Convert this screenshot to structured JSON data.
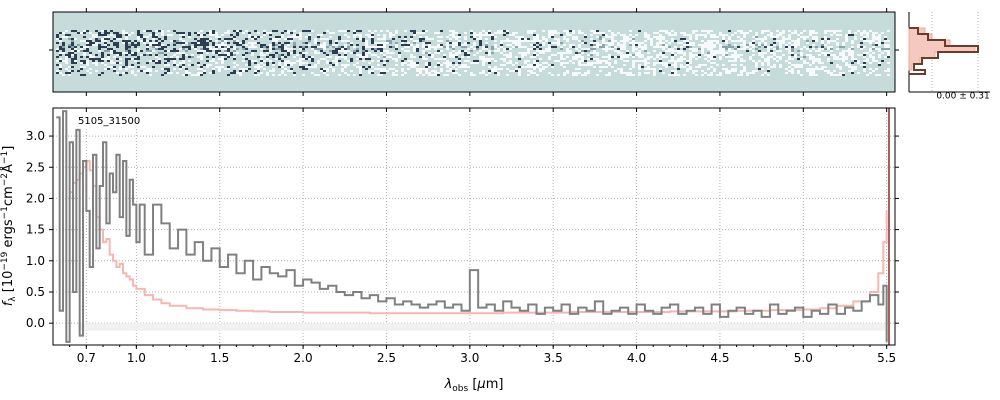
{
  "chart_data": [
    {
      "panel": "2d-spectrum",
      "type": "heatmap",
      "description_visible": "2D spectrum image, dark/white streaks along central trace",
      "colors": {
        "background": "#c5dcdb",
        "trace_dark": "#1c2c44",
        "trace_light": "#ffffff"
      }
    },
    {
      "panel": "cross-dispersion-profile",
      "type": "line",
      "annotation": "0.00 ± 0.31",
      "colors": {
        "profile": "#6b3b2c",
        "fill": "#f6c9c0",
        "fill_edge": "#e9a999"
      }
    },
    {
      "panel": "1d-spectrum",
      "type": "line",
      "label": "5105_31500",
      "xlabel_html": [
        "λ",
        "obs",
        " [",
        "μ",
        "m]"
      ],
      "ylabel_parts": [
        "f",
        "λ",
        " [10",
        "−19",
        " ergs",
        "−1",
        "cm",
        "−2",
        "Å",
        "−1",
        "]"
      ],
      "xticks": [
        "0.7",
        "1.0",
        "1.5",
        "2.0",
        "2.5",
        "3.0",
        "3.5",
        "4.0",
        "4.5",
        "5.0",
        "5.5"
      ],
      "xtick_values": [
        0.7,
        1.0,
        1.5,
        2.0,
        2.5,
        3.0,
        3.5,
        4.0,
        4.5,
        5.0,
        5.5
      ],
      "yticks": [
        "0.0",
        "0.5",
        "1.0",
        "1.5",
        "2.0",
        "2.5",
        "3.0"
      ],
      "ytick_values": [
        0.0,
        0.5,
        1.0,
        1.5,
        2.0,
        2.5,
        3.0
      ],
      "xlim": [
        0.5,
        5.55
      ],
      "ylim": [
        -0.35,
        3.45
      ],
      "grid": true,
      "colors": {
        "data": "#808080",
        "model": "#f4b7b2",
        "grid": "#b0b0b0",
        "zero_band": "#f1f1f1",
        "edge_line": "#8b2a2a"
      },
      "series": [
        {
          "name": "data",
          "x": [
            0.52,
            0.54,
            0.56,
            0.58,
            0.6,
            0.62,
            0.64,
            0.66,
            0.68,
            0.7,
            0.72,
            0.74,
            0.76,
            0.78,
            0.8,
            0.82,
            0.84,
            0.86,
            0.88,
            0.9,
            0.92,
            0.94,
            0.96,
            0.98,
            1.0,
            1.02,
            1.05,
            1.1,
            1.15,
            1.2,
            1.25,
            1.3,
            1.35,
            1.4,
            1.45,
            1.5,
            1.55,
            1.6,
            1.65,
            1.7,
            1.75,
            1.8,
            1.85,
            1.9,
            1.95,
            2.0,
            2.05,
            2.1,
            2.15,
            2.2,
            2.25,
            2.3,
            2.35,
            2.4,
            2.45,
            2.5,
            2.55,
            2.6,
            2.65,
            2.7,
            2.75,
            2.8,
            2.85,
            2.9,
            2.95,
            3.0,
            3.05,
            3.1,
            3.15,
            3.2,
            3.25,
            3.3,
            3.35,
            3.4,
            3.45,
            3.5,
            3.55,
            3.6,
            3.65,
            3.7,
            3.75,
            3.8,
            3.85,
            3.9,
            3.95,
            4.0,
            4.05,
            4.1,
            4.15,
            4.2,
            4.25,
            4.3,
            4.35,
            4.4,
            4.45,
            4.5,
            4.55,
            4.6,
            4.65,
            4.7,
            4.75,
            4.8,
            4.85,
            4.9,
            4.95,
            5.0,
            5.05,
            5.1,
            5.15,
            5.2,
            5.25,
            5.3,
            5.35,
            5.4,
            5.45,
            5.48,
            5.5
          ],
          "y": [
            3.3,
            0.2,
            3.4,
            -0.3,
            2.9,
            0.5,
            3.1,
            -0.2,
            2.6,
            1.8,
            0.9,
            2.7,
            1.2,
            2.2,
            2.9,
            1.6,
            2.4,
            2.1,
            2.7,
            1.7,
            2.6,
            1.4,
            2.3,
            1.9,
            1.3,
            1.9,
            1.1,
            1.9,
            1.6,
            1.2,
            1.5,
            1.1,
            1.3,
            1.0,
            1.2,
            0.9,
            1.1,
            0.8,
            1.0,
            0.7,
            0.9,
            0.8,
            0.75,
            0.85,
            0.6,
            0.7,
            0.65,
            0.55,
            0.6,
            0.5,
            0.45,
            0.5,
            0.4,
            0.45,
            0.35,
            0.4,
            0.3,
            0.35,
            0.3,
            0.25,
            0.3,
            0.35,
            0.25,
            0.3,
            0.2,
            0.85,
            0.25,
            0.3,
            0.2,
            0.35,
            0.25,
            0.2,
            0.3,
            0.15,
            0.25,
            0.2,
            0.3,
            0.15,
            0.25,
            0.2,
            0.35,
            0.15,
            0.2,
            0.25,
            0.15,
            0.3,
            0.2,
            0.15,
            0.25,
            0.3,
            0.15,
            0.2,
            0.25,
            0.15,
            0.3,
            0.1,
            0.2,
            0.25,
            0.15,
            0.2,
            0.1,
            0.3,
            0.15,
            0.2,
            0.25,
            0.1,
            0.2,
            0.15,
            0.3,
            0.15,
            0.25,
            0.2,
            0.35,
            0.45,
            0.3,
            0.6,
            -0.3
          ]
        },
        {
          "name": "model",
          "x": [
            0.6,
            0.62,
            0.64,
            0.66,
            0.68,
            0.7,
            0.72,
            0.74,
            0.76,
            0.78,
            0.8,
            0.82,
            0.84,
            0.86,
            0.88,
            0.9,
            0.92,
            0.94,
            0.96,
            0.98,
            1.0,
            1.05,
            1.1,
            1.15,
            1.2,
            1.3,
            1.4,
            1.5,
            1.6,
            1.7,
            1.8,
            1.9,
            2.0,
            2.2,
            2.4,
            2.6,
            2.8,
            3.0,
            3.2,
            3.4,
            3.6,
            3.8,
            4.0,
            4.2,
            4.4,
            4.6,
            4.8,
            5.0,
            5.1,
            5.2,
            5.3,
            5.4,
            5.45,
            5.48,
            5.5
          ],
          "y": [
            2.1,
            2.25,
            2.3,
            2.4,
            2.5,
            2.6,
            2.45,
            2.2,
            1.7,
            1.5,
            1.3,
            1.35,
            1.1,
            1.0,
            0.9,
            0.95,
            0.8,
            0.75,
            0.7,
            0.6,
            0.55,
            0.45,
            0.38,
            0.32,
            0.28,
            0.24,
            0.22,
            0.21,
            0.2,
            0.19,
            0.18,
            0.18,
            0.17,
            0.17,
            0.16,
            0.16,
            0.16,
            0.16,
            0.17,
            0.17,
            0.18,
            0.18,
            0.18,
            0.19,
            0.19,
            0.2,
            0.21,
            0.22,
            0.24,
            0.28,
            0.35,
            0.5,
            0.8,
            1.3,
            1.8
          ]
        }
      ]
    }
  ]
}
